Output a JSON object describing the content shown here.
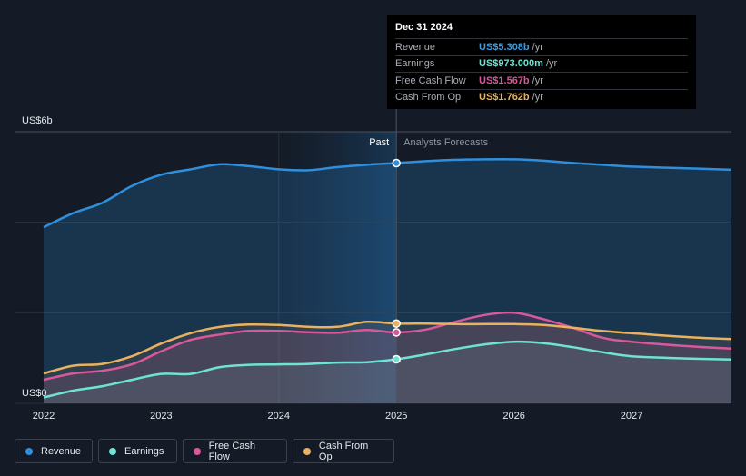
{
  "tooltip": {
    "date": "Dec 31 2024",
    "rows": [
      {
        "label": "Revenue",
        "value": "US$5.308b",
        "unit": "/yr",
        "color": "#3b9de0"
      },
      {
        "label": "Earnings",
        "value": "US$973.000m",
        "unit": "/yr",
        "color": "#6ee3d3"
      },
      {
        "label": "Free Cash Flow",
        "value": "US$1.567b",
        "unit": "/yr",
        "color": "#d9579b"
      },
      {
        "label": "Cash From Op",
        "value": "US$1.762b",
        "unit": "/yr",
        "color": "#eab15f"
      }
    ]
  },
  "legend": [
    {
      "label": "Revenue",
      "color": "#2f8fdc"
    },
    {
      "label": "Earnings",
      "color": "#6ee3d3"
    },
    {
      "label": "Free Cash Flow",
      "color": "#d9579b"
    },
    {
      "label": "Cash From Op",
      "color": "#eab15f"
    }
  ],
  "chart_data": {
    "type": "area",
    "y_unit_labels": {
      "top": "US$6b",
      "bottom": "US$0"
    },
    "ylim": [
      0,
      6
    ],
    "xlim": [
      2022,
      2027.85
    ],
    "x_ticks": [
      "2022",
      "2023",
      "2024",
      "2025",
      "2026",
      "2027"
    ],
    "x_tick_values": [
      2022,
      2023,
      2024,
      2025,
      2026,
      2027
    ],
    "divider_x": 2025,
    "past_label": "Past",
    "forecast_label": "Analysts Forecasts",
    "series": [
      {
        "name": "Revenue",
        "color": "#2f8fdc",
        "points": [
          [
            2022,
            3.89
          ],
          [
            2022.25,
            4.2
          ],
          [
            2022.5,
            4.43
          ],
          [
            2022.75,
            4.8
          ],
          [
            2023,
            5.05
          ],
          [
            2023.25,
            5.17
          ],
          [
            2023.5,
            5.28
          ],
          [
            2023.75,
            5.24
          ],
          [
            2024,
            5.17
          ],
          [
            2024.25,
            5.15
          ],
          [
            2024.5,
            5.22
          ],
          [
            2024.75,
            5.27
          ],
          [
            2025,
            5.308
          ],
          [
            2025.25,
            5.35
          ],
          [
            2025.5,
            5.38
          ],
          [
            2025.75,
            5.39
          ],
          [
            2026,
            5.39
          ],
          [
            2026.25,
            5.36
          ],
          [
            2026.5,
            5.31
          ],
          [
            2026.75,
            5.27
          ],
          [
            2027,
            5.23
          ],
          [
            2027.5,
            5.19
          ],
          [
            2027.85,
            5.16
          ]
        ]
      },
      {
        "name": "Earnings",
        "color": "#6ee3d3",
        "points": [
          [
            2022,
            0.13
          ],
          [
            2022.25,
            0.28
          ],
          [
            2022.5,
            0.38
          ],
          [
            2022.75,
            0.52
          ],
          [
            2023,
            0.65
          ],
          [
            2023.25,
            0.65
          ],
          [
            2023.5,
            0.8
          ],
          [
            2023.75,
            0.85
          ],
          [
            2024,
            0.86
          ],
          [
            2024.25,
            0.87
          ],
          [
            2024.5,
            0.9
          ],
          [
            2024.75,
            0.91
          ],
          [
            2025,
            0.973
          ],
          [
            2025.25,
            1.08
          ],
          [
            2025.5,
            1.2
          ],
          [
            2025.75,
            1.3
          ],
          [
            2026,
            1.36
          ],
          [
            2026.25,
            1.33
          ],
          [
            2026.5,
            1.24
          ],
          [
            2026.75,
            1.13
          ],
          [
            2027,
            1.04
          ],
          [
            2027.5,
            0.99
          ],
          [
            2027.85,
            0.97
          ]
        ]
      },
      {
        "name": "Free Cash Flow",
        "color": "#d9579b",
        "points": [
          [
            2022,
            0.52
          ],
          [
            2022.25,
            0.66
          ],
          [
            2022.5,
            0.72
          ],
          [
            2022.75,
            0.86
          ],
          [
            2023,
            1.15
          ],
          [
            2023.25,
            1.4
          ],
          [
            2023.5,
            1.52
          ],
          [
            2023.75,
            1.6
          ],
          [
            2024,
            1.6
          ],
          [
            2024.25,
            1.57
          ],
          [
            2024.5,
            1.56
          ],
          [
            2024.75,
            1.62
          ],
          [
            2025,
            1.567
          ],
          [
            2025.25,
            1.63
          ],
          [
            2025.5,
            1.8
          ],
          [
            2025.75,
            1.95
          ],
          [
            2026,
            2.0
          ],
          [
            2026.25,
            1.86
          ],
          [
            2026.5,
            1.67
          ],
          [
            2026.75,
            1.45
          ],
          [
            2027,
            1.36
          ],
          [
            2027.5,
            1.26
          ],
          [
            2027.85,
            1.21
          ]
        ]
      },
      {
        "name": "Cash From Op",
        "color": "#eab15f",
        "points": [
          [
            2022,
            0.66
          ],
          [
            2022.25,
            0.83
          ],
          [
            2022.5,
            0.87
          ],
          [
            2022.75,
            1.04
          ],
          [
            2023,
            1.32
          ],
          [
            2023.25,
            1.55
          ],
          [
            2023.5,
            1.69
          ],
          [
            2023.75,
            1.74
          ],
          [
            2024,
            1.73
          ],
          [
            2024.25,
            1.69
          ],
          [
            2024.5,
            1.69
          ],
          [
            2024.75,
            1.8
          ],
          [
            2025,
            1.762
          ],
          [
            2025.25,
            1.76
          ],
          [
            2025.5,
            1.75
          ],
          [
            2025.75,
            1.75
          ],
          [
            2026,
            1.75
          ],
          [
            2026.25,
            1.73
          ],
          [
            2026.5,
            1.67
          ],
          [
            2026.75,
            1.6
          ],
          [
            2027,
            1.55
          ],
          [
            2027.5,
            1.46
          ],
          [
            2027.85,
            1.42
          ]
        ]
      }
    ]
  }
}
